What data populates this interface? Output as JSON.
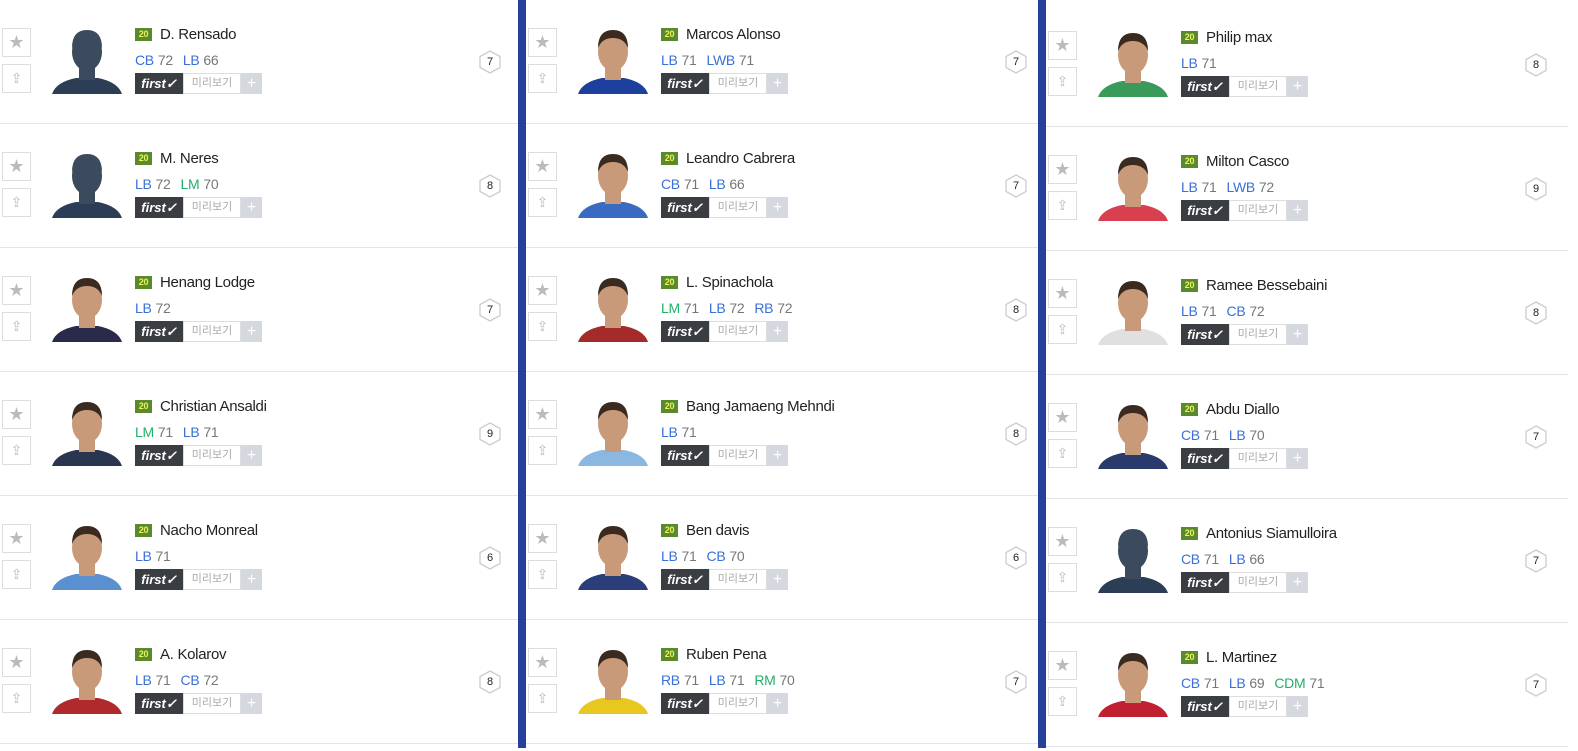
{
  "colors": {
    "divider": "#27419a",
    "position_blue": "#3a70d8",
    "position_green": "#20b168",
    "season_badge": "#5a8a2b"
  },
  "labels": {
    "season": "20",
    "first": "first✓",
    "preview": "미리보기",
    "plus": "+",
    "star_icon": "★",
    "up_icon": "⇪"
  },
  "columns": [
    {
      "players": [
        {
          "name": "D. Rensado",
          "positions": [
            {
              "pos": "CB",
              "val": "72",
              "c": "blue"
            },
            {
              "pos": "LB",
              "val": "66",
              "c": "blue"
            }
          ],
          "ovr": "7",
          "silhouette": true,
          "shirt": "#2c3e56"
        },
        {
          "name": "M. Neres",
          "positions": [
            {
              "pos": "LB",
              "val": "72",
              "c": "blue"
            },
            {
              "pos": "LM",
              "val": "70",
              "c": "green"
            }
          ],
          "ovr": "8",
          "silhouette": true,
          "shirt": "#2c3e56"
        },
        {
          "name": "Henang Lodge",
          "positions": [
            {
              "pos": "LB",
              "val": "72",
              "c": "blue"
            }
          ],
          "ovr": "7",
          "shirt": "#2a2a4a"
        },
        {
          "name": "Christian Ansaldi",
          "positions": [
            {
              "pos": "LM",
              "val": "71",
              "c": "green"
            },
            {
              "pos": "LB",
              "val": "71",
              "c": "blue"
            }
          ],
          "ovr": "9",
          "shirt": "#2a3550"
        },
        {
          "name": "Nacho Monreal",
          "positions": [
            {
              "pos": "LB",
              "val": "71",
              "c": "blue"
            }
          ],
          "ovr": "6",
          "shirt": "#5a8fd0"
        },
        {
          "name": "A. Kolarov",
          "positions": [
            {
              "pos": "LB",
              "val": "71",
              "c": "blue"
            },
            {
              "pos": "CB",
              "val": "72",
              "c": "blue"
            }
          ],
          "ovr": "8",
          "shirt": "#b0292c"
        }
      ]
    },
    {
      "players": [
        {
          "name": "Marcos Alonso",
          "positions": [
            {
              "pos": "LB",
              "val": "71",
              "c": "blue"
            },
            {
              "pos": "LWB",
              "val": "71",
              "c": "blue"
            }
          ],
          "ovr": "7",
          "shirt": "#1d3f9e"
        },
        {
          "name": "Leandro Cabrera",
          "positions": [
            {
              "pos": "CB",
              "val": "71",
              "c": "blue"
            },
            {
              "pos": "LB",
              "val": "66",
              "c": "blue"
            }
          ],
          "ovr": "7",
          "shirt": "#3a6bc0"
        },
        {
          "name": "L. Spinachola",
          "positions": [
            {
              "pos": "LM",
              "val": "71",
              "c": "green"
            },
            {
              "pos": "LB",
              "val": "72",
              "c": "blue"
            },
            {
              "pos": "RB",
              "val": "72",
              "c": "blue"
            }
          ],
          "ovr": "8",
          "shirt": "#a52a2a"
        },
        {
          "name": "Bang Jamaeng Mehndi",
          "positions": [
            {
              "pos": "LB",
              "val": "71",
              "c": "blue"
            }
          ],
          "ovr": "8",
          "shirt": "#8ab8e0"
        },
        {
          "name": "Ben davis",
          "positions": [
            {
              "pos": "LB",
              "val": "71",
              "c": "blue"
            },
            {
              "pos": "CB",
              "val": "70",
              "c": "blue"
            }
          ],
          "ovr": "6",
          "shirt": "#2b3e7a"
        },
        {
          "name": "Ruben Pena",
          "positions": [
            {
              "pos": "RB",
              "val": "71",
              "c": "blue"
            },
            {
              "pos": "LB",
              "val": "71",
              "c": "blue"
            },
            {
              "pos": "RM",
              "val": "70",
              "c": "green"
            }
          ],
          "ovr": "7",
          "shirt": "#e8c820"
        }
      ]
    },
    {
      "players": [
        {
          "name": "Philip max",
          "positions": [
            {
              "pos": "LB",
              "val": "71",
              "c": "blue"
            }
          ],
          "ovr": "8",
          "shirt": "#3a9a5a"
        },
        {
          "name": "Milton Casco",
          "positions": [
            {
              "pos": "LB",
              "val": "71",
              "c": "blue"
            },
            {
              "pos": "LWB",
              "val": "72",
              "c": "blue"
            }
          ],
          "ovr": "9",
          "shirt": "#d84050"
        },
        {
          "name": "Ramee Bessebaini",
          "positions": [
            {
              "pos": "LB",
              "val": "71",
              "c": "blue"
            },
            {
              "pos": "CB",
              "val": "72",
              "c": "blue"
            }
          ],
          "ovr": "8",
          "shirt": "#e0e0e0"
        },
        {
          "name": "Abdu Diallo",
          "positions": [
            {
              "pos": "CB",
              "val": "71",
              "c": "blue"
            },
            {
              "pos": "LB",
              "val": "70",
              "c": "blue"
            }
          ],
          "ovr": "7",
          "shirt": "#2a3a6a"
        },
        {
          "name": "Antonius Siamulloira",
          "positions": [
            {
              "pos": "CB",
              "val": "71",
              "c": "blue"
            },
            {
              "pos": "LB",
              "val": "66",
              "c": "blue"
            }
          ],
          "ovr": "7",
          "silhouette": true,
          "shirt": "#2c3e56"
        },
        {
          "name": "L. Martinez",
          "positions": [
            {
              "pos": "CB",
              "val": "71",
              "c": "blue"
            },
            {
              "pos": "LB",
              "val": "69",
              "c": "blue"
            },
            {
              "pos": "CDM",
              "val": "71",
              "c": "green"
            }
          ],
          "ovr": "7",
          "shirt": "#c02030"
        }
      ]
    }
  ]
}
